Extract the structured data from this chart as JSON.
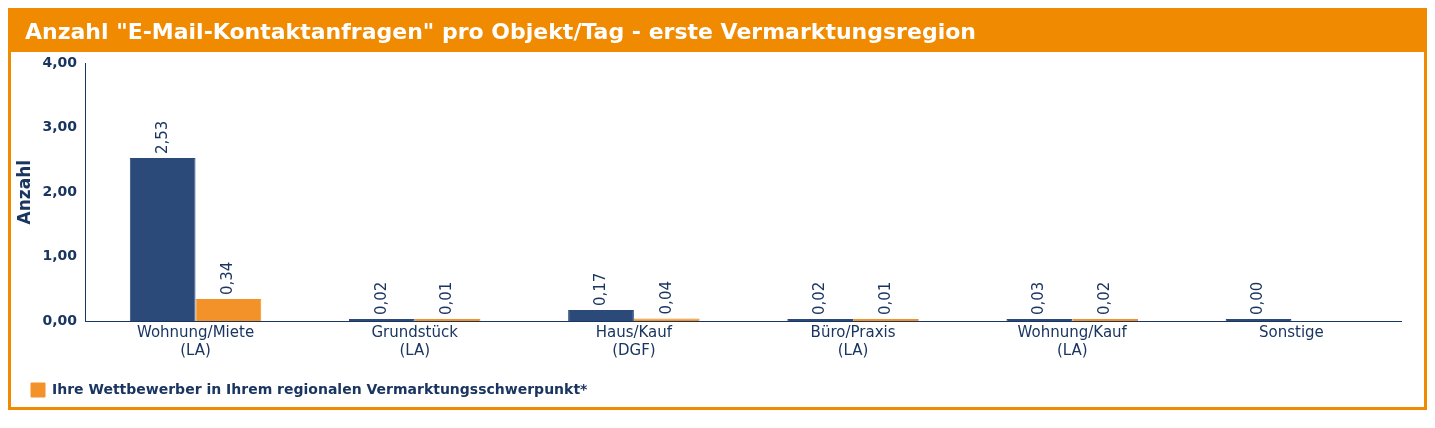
{
  "chart_data": {
    "type": "bar",
    "title": "Anzahl \"E-Mail-Kontaktanfragen\" pro Objekt/Tag - erste Vermarktungsregion",
    "ylabel": "Anzahl",
    "categories": [
      "Wohnung/Miete (LA)",
      "Grundstück (LA)",
      "Haus/Kauf (DGF)",
      "Büro/Praxis (LA)",
      "Wohnung/Kauf (LA)",
      "Sonstige"
    ],
    "series": [
      {
        "color": "#2b4a7a",
        "values": [
          2.53,
          0.02,
          0.17,
          0.02,
          0.03,
          0.0
        ],
        "value_labels": [
          "2,53",
          "0,02",
          "0,17",
          "0,02",
          "0,03",
          "0,00"
        ]
      },
      {
        "name": "Ihre Wettbewerber in Ihrem regionalen Vermarktungsschwerpunkt*",
        "color": "#f4922a",
        "values": [
          0.34,
          0.01,
          0.04,
          0.01,
          0.02,
          null
        ],
        "value_labels": [
          "0,34",
          "0,01",
          "0,04",
          "0,01",
          "0,02",
          null
        ]
      }
    ],
    "ylim": [
      0,
      4
    ],
    "yticks": [
      {
        "value": 0,
        "label": "0,00"
      },
      {
        "value": 1,
        "label": "1,00"
      },
      {
        "value": 2,
        "label": "2,00"
      },
      {
        "value": 3,
        "label": "3,00"
      },
      {
        "value": 4,
        "label": "4,00"
      }
    ],
    "grid": false,
    "legend": "bottom left"
  }
}
